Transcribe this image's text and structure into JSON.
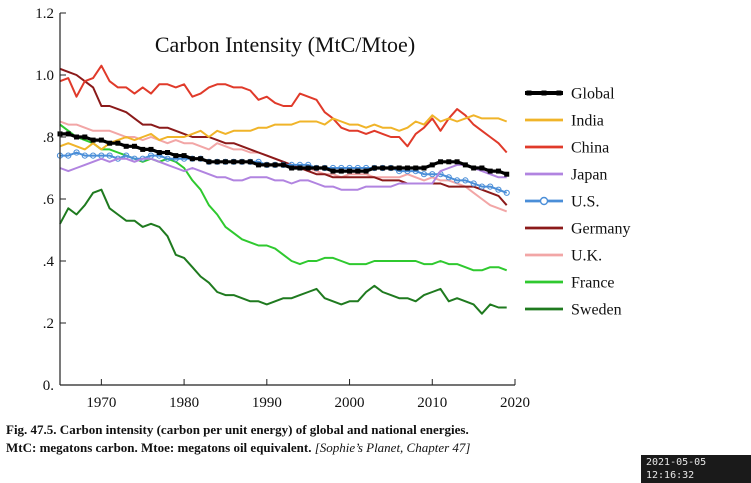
{
  "chart_data": {
    "type": "line",
    "title": "Carbon Intensity (MtC/Mtoe)",
    "xlim": [
      1965,
      2020
    ],
    "ylim": [
      0,
      1.2
    ],
    "x_ticks": [
      1970,
      1980,
      1990,
      2000,
      2010,
      2020
    ],
    "x_tick_labels": [
      "1970",
      "1980",
      "1990",
      "2000",
      "2010",
      "2020"
    ],
    "y_ticks": [
      0,
      0.2,
      0.4,
      0.6,
      0.8,
      1.0,
      1.2
    ],
    "y_tick_labels": [
      "0.",
      ".2",
      ".4",
      ".6",
      ".8",
      "1.0",
      "1.2"
    ],
    "grid": false,
    "legend_position": "right",
    "years": [
      1965,
      1966,
      1967,
      1968,
      1969,
      1970,
      1971,
      1972,
      1973,
      1974,
      1975,
      1976,
      1977,
      1978,
      1979,
      1980,
      1981,
      1982,
      1983,
      1984,
      1985,
      1986,
      1987,
      1988,
      1989,
      1990,
      1991,
      1992,
      1993,
      1994,
      1995,
      1996,
      1997,
      1998,
      1999,
      2000,
      2001,
      2002,
      2003,
      2004,
      2005,
      2006,
      2007,
      2008,
      2009,
      2010,
      2011,
      2012,
      2013,
      2014,
      2015,
      2016,
      2017,
      2018,
      2019
    ],
    "series": [
      {
        "name": "Global",
        "color": "#000000",
        "marker": "square",
        "width": 3.2,
        "values": [
          0.81,
          0.81,
          0.8,
          0.8,
          0.79,
          0.79,
          0.78,
          0.78,
          0.77,
          0.77,
          0.76,
          0.76,
          0.75,
          0.75,
          0.74,
          0.74,
          0.73,
          0.73,
          0.72,
          0.72,
          0.72,
          0.72,
          0.72,
          0.72,
          0.71,
          0.71,
          0.71,
          0.71,
          0.7,
          0.7,
          0.7,
          0.7,
          0.7,
          0.69,
          0.69,
          0.69,
          0.69,
          0.69,
          0.7,
          0.7,
          0.7,
          0.7,
          0.7,
          0.7,
          0.7,
          0.71,
          0.72,
          0.72,
          0.72,
          0.71,
          0.7,
          0.7,
          0.69,
          0.69,
          0.68
        ]
      },
      {
        "name": "India",
        "color": "#f0b429",
        "width": 2,
        "values": [
          0.77,
          0.78,
          0.77,
          0.76,
          0.78,
          0.76,
          0.78,
          0.79,
          0.8,
          0.79,
          0.8,
          0.81,
          0.79,
          0.8,
          0.8,
          0.8,
          0.81,
          0.82,
          0.8,
          0.82,
          0.81,
          0.82,
          0.82,
          0.82,
          0.83,
          0.83,
          0.84,
          0.84,
          0.84,
          0.85,
          0.85,
          0.85,
          0.84,
          0.86,
          0.85,
          0.84,
          0.84,
          0.83,
          0.84,
          0.83,
          0.83,
          0.82,
          0.83,
          0.85,
          0.84,
          0.87,
          0.85,
          0.86,
          0.85,
          0.86,
          0.87,
          0.86,
          0.86,
          0.86,
          0.85
        ]
      },
      {
        "name": "China",
        "color": "#e03a2a",
        "width": 2,
        "values": [
          0.98,
          0.99,
          0.93,
          0.98,
          0.99,
          1.03,
          0.98,
          0.96,
          0.96,
          0.94,
          0.96,
          0.94,
          0.97,
          0.97,
          0.96,
          0.97,
          0.93,
          0.94,
          0.96,
          0.97,
          0.97,
          0.96,
          0.96,
          0.95,
          0.92,
          0.93,
          0.91,
          0.9,
          0.9,
          0.94,
          0.93,
          0.92,
          0.88,
          0.86,
          0.83,
          0.82,
          0.82,
          0.81,
          0.82,
          0.81,
          0.8,
          0.8,
          0.77,
          0.81,
          0.83,
          0.86,
          0.82,
          0.86,
          0.89,
          0.87,
          0.84,
          0.82,
          0.8,
          0.78,
          0.75
        ]
      },
      {
        "name": "Japan",
        "color": "#b184e0",
        "width": 2,
        "values": [
          0.7,
          0.69,
          0.7,
          0.71,
          0.72,
          0.73,
          0.72,
          0.73,
          0.73,
          0.72,
          0.73,
          0.73,
          0.72,
          0.71,
          0.7,
          0.69,
          0.7,
          0.69,
          0.68,
          0.67,
          0.67,
          0.66,
          0.66,
          0.67,
          0.67,
          0.67,
          0.66,
          0.66,
          0.65,
          0.66,
          0.66,
          0.65,
          0.64,
          0.64,
          0.63,
          0.63,
          0.63,
          0.64,
          0.64,
          0.64,
          0.64,
          0.65,
          0.65,
          0.65,
          0.65,
          0.65,
          0.69,
          0.7,
          0.71,
          0.71,
          0.7,
          0.69,
          0.68,
          0.67,
          0.67
        ]
      },
      {
        "name": "U.S.",
        "color": "#4a8ed8",
        "marker": "circle",
        "width": 2,
        "values": [
          0.74,
          0.74,
          0.75,
          0.74,
          0.74,
          0.74,
          0.74,
          0.73,
          0.74,
          0.73,
          0.73,
          0.74,
          0.74,
          0.73,
          0.73,
          0.73,
          0.73,
          0.73,
          0.72,
          0.72,
          0.72,
          0.72,
          0.72,
          0.72,
          0.72,
          0.71,
          0.71,
          0.71,
          0.71,
          0.71,
          0.71,
          0.7,
          0.7,
          0.7,
          0.7,
          0.7,
          0.7,
          0.7,
          0.7,
          0.7,
          0.7,
          0.69,
          0.69,
          0.69,
          0.68,
          0.68,
          0.68,
          0.67,
          0.66,
          0.66,
          0.65,
          0.64,
          0.64,
          0.63,
          0.62
        ]
      },
      {
        "name": "Germany",
        "color": "#8b1a1a",
        "width": 2,
        "values": [
          1.02,
          1.01,
          1.0,
          0.98,
          0.96,
          0.9,
          0.9,
          0.89,
          0.88,
          0.86,
          0.84,
          0.84,
          0.83,
          0.83,
          0.82,
          0.81,
          0.8,
          0.8,
          0.8,
          0.79,
          0.78,
          0.78,
          0.77,
          0.76,
          0.75,
          0.74,
          0.73,
          0.72,
          0.71,
          0.7,
          0.69,
          0.68,
          0.68,
          0.67,
          0.67,
          0.67,
          0.67,
          0.67,
          0.67,
          0.66,
          0.66,
          0.66,
          0.65,
          0.65,
          0.65,
          0.65,
          0.65,
          0.64,
          0.64,
          0.64,
          0.64,
          0.63,
          0.62,
          0.61,
          0.58
        ]
      },
      {
        "name": "U.K.",
        "color": "#f2a6a6",
        "width": 2,
        "values": [
          0.85,
          0.84,
          0.84,
          0.83,
          0.82,
          0.82,
          0.82,
          0.81,
          0.8,
          0.8,
          0.79,
          0.8,
          0.79,
          0.78,
          0.79,
          0.78,
          0.78,
          0.77,
          0.76,
          0.78,
          0.77,
          0.76,
          0.76,
          0.75,
          0.75,
          0.74,
          0.73,
          0.72,
          0.71,
          0.7,
          0.7,
          0.69,
          0.68,
          0.68,
          0.67,
          0.68,
          0.68,
          0.68,
          0.67,
          0.67,
          0.67,
          0.67,
          0.68,
          0.67,
          0.66,
          0.67,
          0.66,
          0.66,
          0.65,
          0.64,
          0.62,
          0.6,
          0.58,
          0.57,
          0.56
        ]
      },
      {
        "name": "France",
        "color": "#2fc92f",
        "width": 2,
        "values": [
          0.84,
          0.82,
          0.8,
          0.79,
          0.78,
          0.76,
          0.76,
          0.75,
          0.74,
          0.73,
          0.72,
          0.73,
          0.72,
          0.73,
          0.72,
          0.7,
          0.66,
          0.63,
          0.58,
          0.55,
          0.51,
          0.49,
          0.47,
          0.46,
          0.45,
          0.45,
          0.44,
          0.42,
          0.4,
          0.39,
          0.4,
          0.4,
          0.41,
          0.41,
          0.4,
          0.39,
          0.39,
          0.39,
          0.4,
          0.4,
          0.4,
          0.4,
          0.4,
          0.4,
          0.39,
          0.39,
          0.4,
          0.39,
          0.39,
          0.38,
          0.37,
          0.37,
          0.38,
          0.38,
          0.37
        ]
      },
      {
        "name": "Sweden",
        "color": "#1f7a1f",
        "width": 2,
        "values": [
          0.52,
          0.57,
          0.55,
          0.58,
          0.62,
          0.63,
          0.57,
          0.55,
          0.53,
          0.53,
          0.51,
          0.52,
          0.51,
          0.48,
          0.42,
          0.41,
          0.38,
          0.35,
          0.33,
          0.3,
          0.29,
          0.29,
          0.28,
          0.27,
          0.27,
          0.26,
          0.27,
          0.28,
          0.28,
          0.29,
          0.3,
          0.31,
          0.28,
          0.27,
          0.26,
          0.27,
          0.27,
          0.3,
          0.32,
          0.3,
          0.29,
          0.28,
          0.28,
          0.27,
          0.29,
          0.3,
          0.31,
          0.27,
          0.28,
          0.27,
          0.26,
          0.23,
          0.26,
          0.25,
          0.25
        ]
      }
    ]
  },
  "caption": {
    "line1": "Fig. 47.5. Carbon intensity (carbon per unit energy) of global and national energies.",
    "line2": "MtC: megatons carbon. Mtoe: megatons oil equivalent.",
    "source": "[Sophie’s Planet, Chapter 47]"
  },
  "timestamp": "2021-05-05 12:16:32"
}
